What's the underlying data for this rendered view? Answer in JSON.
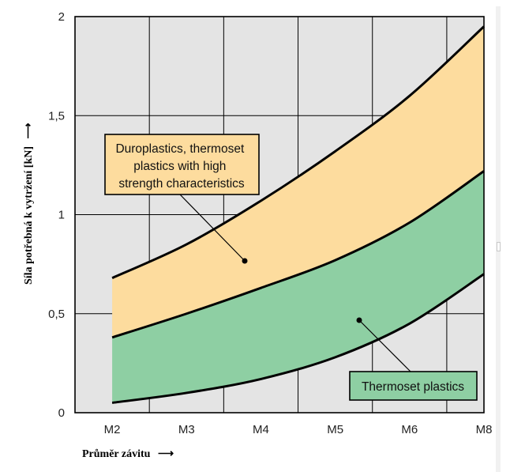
{
  "chart_data": {
    "type": "area",
    "ylabel": "Síla potřebná k vytržení [kN]",
    "xlabel": "Průměr závitu",
    "y_arrow": "⟶",
    "x_arrow": "⟶",
    "categories": [
      "M2",
      "M3",
      "M4",
      "M5",
      "M6",
      "M8"
    ],
    "yticks": [
      "0",
      "0,5",
      "1",
      "1,5",
      "2"
    ],
    "ylim": [
      0,
      2
    ],
    "grid": true,
    "x_domain": [
      1.5,
      7
    ],
    "x": [
      2,
      3,
      4,
      5,
      6,
      7
    ],
    "series": [
      {
        "name": "Duroplastics, thermoset plastics with high strength characteristics",
        "lower": [
          0.38,
          0.5,
          0.63,
          0.77,
          0.96,
          1.22
        ],
        "upper": [
          0.68,
          0.85,
          1.07,
          1.32,
          1.6,
          1.95
        ],
        "color": "#fddc9e"
      },
      {
        "name": "Thermoset plastics",
        "lower": [
          0.05,
          0.1,
          0.17,
          0.28,
          0.45,
          0.7
        ],
        "upper": [
          0.38,
          0.5,
          0.63,
          0.77,
          0.96,
          1.22
        ],
        "color": "#8ecfa3"
      }
    ],
    "callouts": [
      {
        "lines": [
          "Duroplastics, thermoset",
          "plastics with high",
          "strength characteristics"
        ],
        "box_color": "#fddc9e"
      },
      {
        "lines": [
          "Thermoset plastics"
        ],
        "box_color": "#8ecfa3"
      }
    ],
    "colors": {
      "background": "#e4e4e4",
      "grid": "#000000",
      "curve": "#000000"
    }
  }
}
